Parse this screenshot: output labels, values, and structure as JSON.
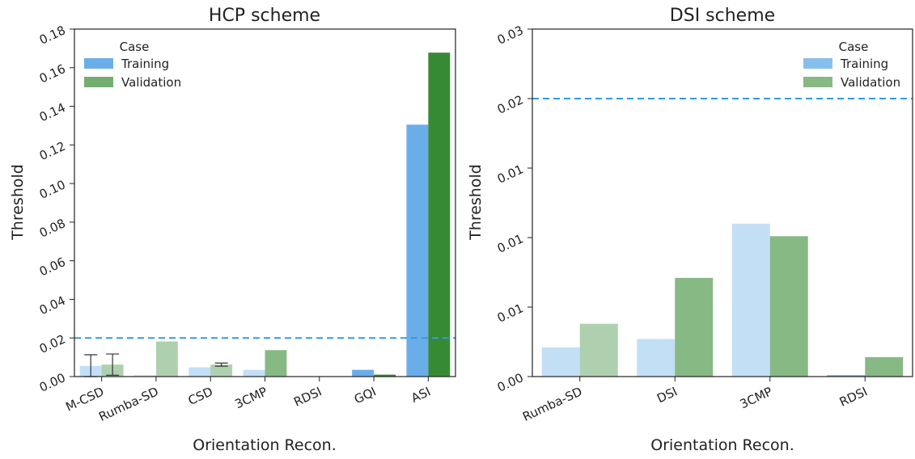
{
  "chart_data": [
    {
      "type": "bar",
      "title": "HCP scheme",
      "xlabel": "Orientation Recon.",
      "ylabel": "Threshold",
      "ylim": [
        0,
        0.18
      ],
      "yticks": [
        "0.00",
        "0.02",
        "0.04",
        "0.06",
        "0.08",
        "0.10",
        "0.12",
        "0.14",
        "0.16",
        "0.18"
      ],
      "tick_values": [
        0,
        0.02,
        0.04,
        0.06,
        0.08,
        0.1,
        0.12,
        0.14,
        0.16,
        0.18
      ],
      "categories": [
        "M-CSD",
        "Rumba-SD",
        "CSD",
        "3CMP",
        "RDSI",
        "GQI",
        "ASI"
      ],
      "legend_title": "Case",
      "legend_position": "top-left",
      "threshold_line": 0.02,
      "series": [
        {
          "name": "Training",
          "values": [
            0.0055,
            0.0007,
            0.0048,
            0.0035,
            0.0,
            0.0035,
            0.1305
          ],
          "opacity": [
            0.4,
            0.4,
            0.4,
            0.4,
            0.4,
            1,
            1
          ],
          "error": [
            0.0058,
            null,
            null,
            null,
            null,
            null,
            null
          ]
        },
        {
          "name": "Validation",
          "values": [
            0.0062,
            0.0182,
            0.0062,
            0.0137,
            0.0,
            0.001,
            0.1678
          ],
          "opacity": [
            0.4,
            0.4,
            0.4,
            0.6,
            0.6,
            1,
            1
          ],
          "error": [
            0.0055,
            null,
            0.0008,
            null,
            null,
            null,
            null
          ]
        }
      ]
    },
    {
      "type": "bar",
      "title": "DSI scheme",
      "xlabel": "Orientation Recon.",
      "ylabel": "Threshold",
      "ylim": [
        0,
        0.025
      ],
      "yticks": [
        "0.00",
        "0.01",
        "0.01",
        "0.01",
        "0.02",
        "0.03"
      ],
      "tick_values": [
        0,
        0.005,
        0.01,
        0.015,
        0.02,
        0.025
      ],
      "categories": [
        "Rumba-SD",
        "DSI",
        "3CMP",
        "RDSI"
      ],
      "legend_title": "Case",
      "legend_position": "top-right",
      "threshold_line": 0.02,
      "series": [
        {
          "name": "Training",
          "values": [
            0.0021,
            0.0027,
            0.011,
            0.0001
          ],
          "opacity": [
            0.4,
            0.4,
            0.4,
            1
          ]
        },
        {
          "name": "Validation",
          "values": [
            0.0038,
            0.0071,
            0.0101,
            0.0014
          ],
          "opacity": [
            0.4,
            0.6,
            0.6,
            0.6
          ]
        }
      ]
    }
  ],
  "colors": {
    "training": "#6aaee9",
    "validation": "#378a34",
    "threshold_line": "#2f9be6",
    "axis": "#222222",
    "error_bar": "#333333"
  }
}
